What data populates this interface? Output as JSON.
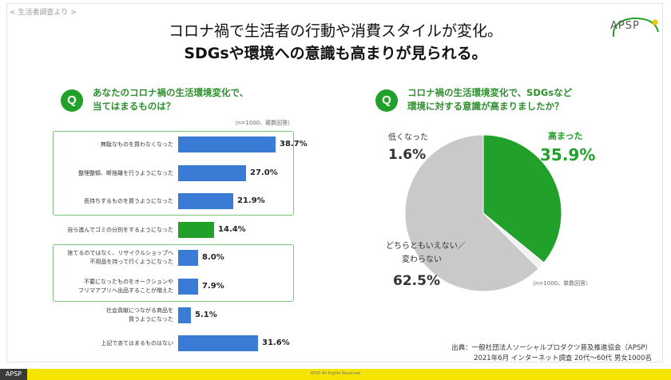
{
  "header": {
    "source_tag": "< 生活者調査より >",
    "title_line1": "コロナ禍で生活者の行動や消費スタイルが変化。",
    "title_line2": "SDGsや環境への意識も高まりが見られる。",
    "logo": "APSP"
  },
  "left": {
    "badge": "Q",
    "question_line1": "あなたのコロナ禍の生活環境変化で、",
    "question_line2": "当てはまるものは？",
    "note": "（n=1000、複数回答）"
  },
  "right": {
    "badge": "Q",
    "question_line1": "コロナ禍の生活環境変化で、SDGsなど",
    "question_line2": "環境に対する意識が高まりましたか？",
    "note": "（n=1000、単数回答）"
  },
  "chart_data": [
    {
      "type": "bar",
      "orientation": "horizontal",
      "categories": [
        "無駄なものを買わなくなった",
        "整理整頓、断捨離を行うようになった",
        "長持ちするものを買うようになった",
        "自ら進んでゴミの分別をするようになった",
        "捨てるのではなく、リサイクルショップへ不用品を持って行くようになった",
        "不要になったものをオークションやフリマアプリへ出品することが増えた",
        "社会貢献につながる商品を買うようになった",
        "上記であてはまるものはない"
      ],
      "values": [
        38.7,
        27.0,
        21.9,
        14.4,
        8.0,
        7.9,
        5.1,
        31.6
      ],
      "value_labels": [
        "38.7%",
        "27.0%",
        "21.9%",
        "14.4%",
        "8.0%",
        "7.9%",
        "5.1%",
        "31.6%"
      ],
      "xlim": [
        0,
        45
      ],
      "colors": [
        "#3a7bd5",
        "#3a7bd5",
        "#3a7bd5",
        "#22a12a",
        "#3a7bd5",
        "#3a7bd5",
        "#3a7bd5",
        "#3a7bd5"
      ]
    },
    {
      "type": "pie",
      "labels": [
        "高まった",
        "低くなった",
        "どちらともいえない／変わらない"
      ],
      "values": [
        35.9,
        1.6,
        62.5
      ],
      "value_labels": [
        "35.9%",
        "1.6%",
        "62.5%"
      ],
      "colors": [
        "#22a12a",
        "#f2f2f2",
        "#c9c9c9"
      ]
    }
  ],
  "bar_label_lines": [
    [
      "無駄なものを買わなくなった"
    ],
    [
      "整理整頓、断捨離を行うようになった"
    ],
    [
      "長持ちするものを買うようになった"
    ],
    [
      "自ら進んでゴミの分別をするようになった"
    ],
    [
      "捨てるのではなく、リサイクルショップへ",
      "不用品を持って行くようになった"
    ],
    [
      "不要になったものをオークションや",
      "フリマアプリへ出品することが増えた"
    ],
    [
      "社会貢献につながる商品を",
      "買うようになった"
    ],
    [
      "上記であてはまるものはない"
    ]
  ],
  "pie_text": {
    "up_label": "高まった",
    "up_value": "35.9%",
    "down_label": "低くなった",
    "down_value": "1.6%",
    "neutral_label1": "どちらともいえない／",
    "neutral_label2": "変わらない",
    "neutral_value": "62.5%"
  },
  "footer": {
    "source_line1": "出典：一般社団法人ソーシャルプロダクツ普及推進協会（APSP）",
    "source_line2": "2021年6月 インターネット調査 20代〜60代 男女1000名",
    "bottom_logo": "APSP",
    "copyright": "APSP All Rights Reserved"
  }
}
